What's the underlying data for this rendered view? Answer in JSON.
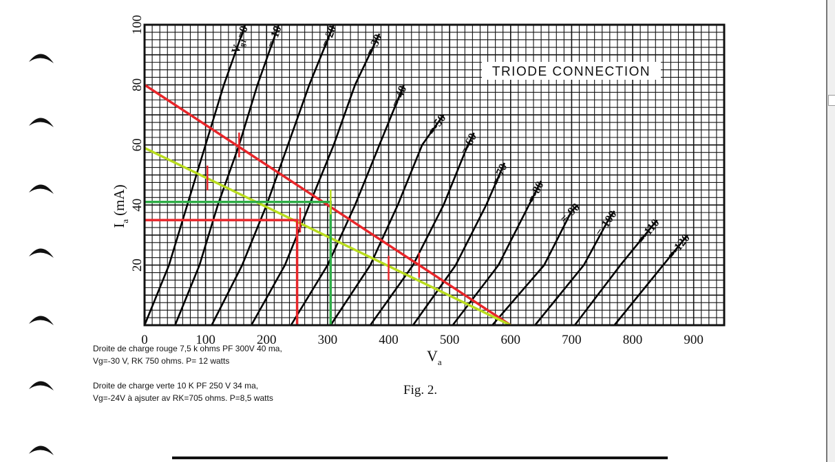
{
  "chart_data": {
    "type": "line",
    "title": "TRIODE CONNECTION",
    "xlabel_main": "V",
    "xlabel_sub": "a",
    "ylabel_main": "I",
    "ylabel_sub": "a",
    "ylabel_unit": "(mA)",
    "xlim": [
      0,
      950
    ],
    "ylim": [
      0,
      100
    ],
    "x_ticks": [
      "0",
      "100",
      "200",
      "300",
      "400",
      "500",
      "600",
      "700",
      "800",
      "900"
    ],
    "y_ticks": [
      "20",
      "40",
      "60",
      "80",
      "100"
    ],
    "grid": true,
    "grid_color": "#111111",
    "curve_color": "#000000",
    "curve_labels": [
      "V",
      "=-10",
      "=-20",
      "=-30",
      "=-40",
      "=-50",
      "=-60",
      "=-70",
      "=-80",
      "=-90",
      "=-100",
      "=-110",
      "=-120"
    ],
    "curve_label_first_sub": "g1",
    "curve_label_first_suffix": "=0",
    "curves": [
      {
        "vg": 0,
        "points": [
          [
            0,
            0
          ],
          [
            40,
            20
          ],
          [
            70,
            40
          ],
          [
            100,
            60
          ],
          [
            130,
            80
          ],
          [
            165,
            100
          ]
        ]
      },
      {
        "vg": -10,
        "points": [
          [
            50,
            0
          ],
          [
            90,
            20
          ],
          [
            120,
            40
          ],
          [
            155,
            60
          ],
          [
            185,
            80
          ],
          [
            220,
            100
          ]
        ]
      },
      {
        "vg": -20,
        "points": [
          [
            110,
            0
          ],
          [
            160,
            20
          ],
          [
            200,
            40
          ],
          [
            235,
            60
          ],
          [
            270,
            80
          ],
          [
            310,
            100
          ]
        ]
      },
      {
        "vg": -30,
        "points": [
          [
            175,
            0
          ],
          [
            230,
            20
          ],
          [
            270,
            40
          ],
          [
            310,
            60
          ],
          [
            345,
            80
          ],
          [
            385,
            97
          ]
        ]
      },
      {
        "vg": -40,
        "points": [
          [
            240,
            0
          ],
          [
            300,
            20
          ],
          [
            345,
            40
          ],
          [
            385,
            60
          ],
          [
            425,
            80
          ]
        ]
      },
      {
        "vg": -50,
        "points": [
          [
            305,
            0
          ],
          [
            370,
            20
          ],
          [
            415,
            40
          ],
          [
            455,
            60
          ],
          [
            490,
            70
          ]
        ]
      },
      {
        "vg": -60,
        "points": [
          [
            370,
            0
          ],
          [
            440,
            20
          ],
          [
            490,
            40
          ],
          [
            530,
            60
          ],
          [
            540,
            64
          ]
        ]
      },
      {
        "vg": -70,
        "points": [
          [
            440,
            0
          ],
          [
            510,
            20
          ],
          [
            560,
            40
          ],
          [
            590,
            54
          ]
        ]
      },
      {
        "vg": -80,
        "points": [
          [
            505,
            0
          ],
          [
            580,
            20
          ],
          [
            630,
            40
          ],
          [
            650,
            48
          ]
        ]
      },
      {
        "vg": -90,
        "points": [
          [
            570,
            0
          ],
          [
            655,
            20
          ],
          [
            700,
            38
          ],
          [
            710,
            40
          ]
        ]
      },
      {
        "vg": -100,
        "points": [
          [
            640,
            0
          ],
          [
            720,
            20
          ],
          [
            760,
            35
          ],
          [
            770,
            38
          ]
        ]
      },
      {
        "vg": -110,
        "points": [
          [
            705,
            0
          ],
          [
            780,
            20
          ],
          [
            820,
            30
          ],
          [
            840,
            35
          ]
        ]
      },
      {
        "vg": -120,
        "points": [
          [
            770,
            0
          ],
          [
            850,
            20
          ],
          [
            890,
            30
          ]
        ]
      }
    ],
    "load_lines": [
      {
        "color": "#e8262a",
        "points": [
          [
            0,
            80
          ],
          [
            600,
            0
          ]
        ]
      },
      {
        "color": "#b9dc1e",
        "points": [
          [
            0,
            59
          ],
          [
            600,
            0
          ]
        ]
      }
    ],
    "operating_lines": [
      {
        "color": "#e8262a",
        "points": [
          [
            0,
            35
          ],
          [
            250,
            35
          ],
          [
            250,
            0
          ]
        ]
      },
      {
        "color": "#2fae48",
        "points": [
          [
            0,
            41
          ],
          [
            305,
            41
          ],
          [
            305,
            0
          ]
        ]
      }
    ],
    "markers": [
      {
        "color": "#e8262a",
        "x": 155,
        "y": 60
      },
      {
        "color": "#e8262a",
        "x": 103,
        "y": 49
      },
      {
        "color": "#e8262a",
        "x": 450,
        "y": 20
      },
      {
        "color": "#e8262a",
        "x": 400,
        "y": 19
      },
      {
        "color": "#e8262a",
        "x": 255,
        "y": 35
      },
      {
        "color": "#b9dc1e",
        "x": 305,
        "y": 41
      }
    ]
  },
  "notes": {
    "red_line_1": "Droite de charge rouge 7,5 k ohms PF 300V 40 ma,",
    "red_line_2": "Vg=-30 V, RK 750 ohms. P= 12 watts",
    "green_line_1": "Droite de charge verte 10 K PF 250 V 34 ma,",
    "green_line_2": "Vg=-24V à ajsuter av RK=705 ohms. P=8,5 watts"
  },
  "caption": "Fig. 2.",
  "binder_hole_icon": "binder-ring-hole-icon"
}
